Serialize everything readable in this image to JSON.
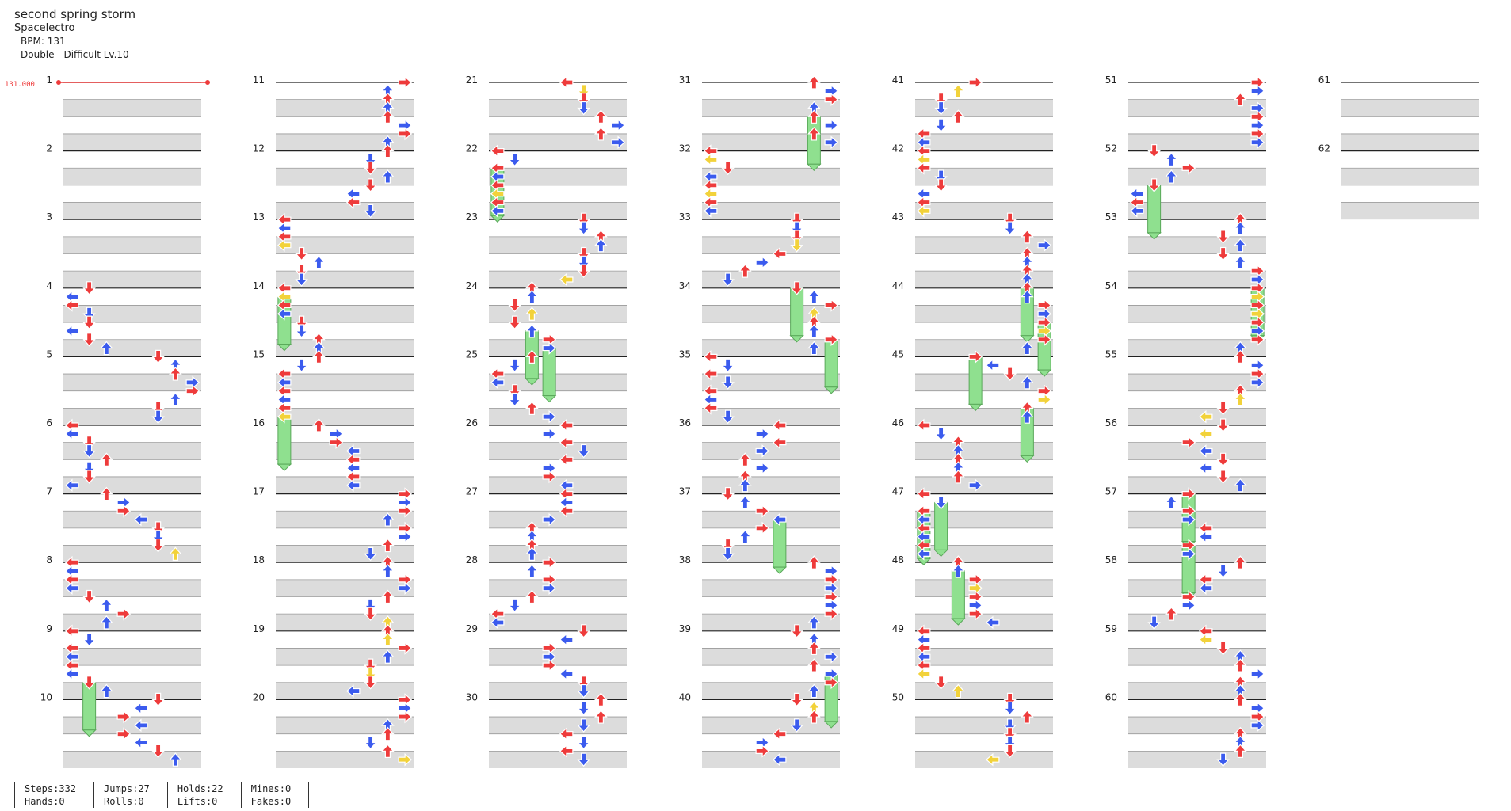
{
  "song": {
    "title": "second spring storm",
    "artist": "Spacelectro",
    "bpm_label": "BPM: 131",
    "difficulty_label": "Double - Difficult Lv.10"
  },
  "bpm_marker": "131.000",
  "measures": [
    1,
    2,
    3,
    4,
    5,
    6,
    7,
    8,
    9,
    10,
    11,
    12,
    13,
    14,
    15,
    16,
    17,
    18,
    19,
    20,
    21,
    22,
    23,
    24,
    25,
    26,
    27,
    28,
    29,
    30,
    31,
    32,
    33,
    34,
    35,
    36,
    37,
    38,
    39,
    40,
    41,
    42,
    43,
    44,
    45,
    46,
    47,
    48,
    49,
    50,
    51,
    52,
    53,
    54,
    55,
    56,
    57,
    58,
    59,
    60,
    61,
    62
  ],
  "stats": [
    {
      "top": "Steps:332",
      "bottom": "Hands:0"
    },
    {
      "top": "Jumps:27",
      "bottom": "Rolls:0"
    },
    {
      "top": "Holds:22",
      "bottom": "Lifts:0"
    },
    {
      "top": "Mines:0",
      "bottom": "Fakes:0"
    }
  ],
  "colors": {
    "quarter": "#ee3b3b",
    "eighth": "#3b5bee",
    "sixteenth": "#f2d23a",
    "hold": "#8fe08f",
    "stripe": "#dcdcdc",
    "beatline": "#222222"
  }
}
